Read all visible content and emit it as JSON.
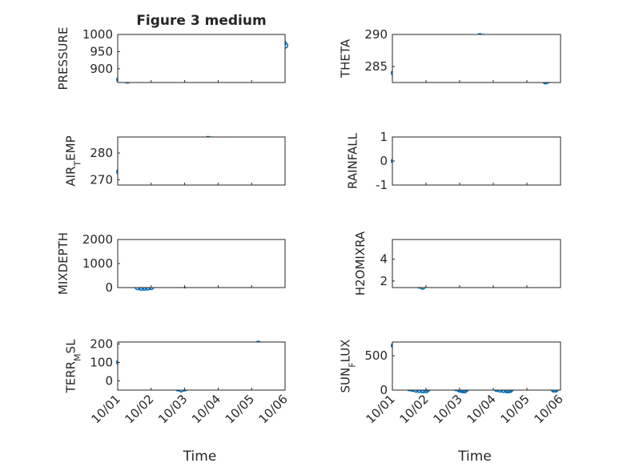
{
  "figure": {
    "title": "Figure 3 medium",
    "xlabel": "Time",
    "marker_color": "#0072bd",
    "xticks": [
      "10/01",
      "10/02",
      "10/03",
      "10/04",
      "10/05",
      "10/06"
    ]
  },
  "chart_data": [
    {
      "type": "scatter",
      "title": "Figure 3 medium",
      "ylabel": "PRESSURE",
      "xlabel": "",
      "xlim": [
        0,
        5
      ],
      "ylim": [
        860,
        1000
      ],
      "yticks": [
        900,
        950,
        1000
      ],
      "ytick_labels": [
        "900",
        "950",
        "1000"
      ],
      "grid": true,
      "series": [
        {
          "name": "PRESSURE",
          "x_days": [
            0.05,
            0.12,
            0.2,
            0.25,
            0.3,
            0.35,
            0.4,
            0.5,
            0.6,
            0.7,
            0.8,
            0.9,
            1.0,
            1.1,
            1.2,
            1.3,
            1.4,
            1.5,
            1.6,
            1.7,
            1.8,
            1.9,
            2.0,
            2.1,
            2.2,
            2.3,
            2.4,
            2.5,
            2.6,
            2.7,
            2.8,
            2.9,
            3.0,
            3.1,
            3.2,
            3.3,
            3.4,
            3.5,
            3.6,
            3.7,
            3.8,
            3.9,
            4.0,
            4.1,
            4.2,
            4.3,
            4.4,
            4.5,
            4.6,
            4.7,
            4.8,
            4.9,
            4.95,
            5.0
          ],
          "values": [
            868,
            868,
            869,
            867,
            866,
            869,
            878,
            885,
            888,
            889,
            889,
            890,
            900,
            908,
            912,
            918,
            935,
            942,
            943,
            945,
            950,
            955,
            952,
            947,
            950,
            955,
            952,
            945,
            944,
            946,
            947,
            944,
            945,
            946,
            947,
            945,
            947,
            952,
            955,
            950,
            948,
            950,
            953,
            948,
            952,
            955,
            953,
            950,
            960,
            965,
            972,
            958,
            975,
            968
          ]
        }
      ]
    },
    {
      "type": "scatter",
      "ylabel": "THETA",
      "xlabel": "",
      "xlim": [
        0,
        5
      ],
      "ylim": [
        282.5,
        290
      ],
      "yticks": [
        285,
        290
      ],
      "ytick_labels": [
        "285",
        "290"
      ],
      "grid": true,
      "series": [
        {
          "name": "THETA",
          "x_days": [
            0.05,
            0.1,
            0.15,
            0.2,
            0.3,
            0.4,
            0.5,
            0.6,
            0.7,
            0.8,
            0.9,
            1.0,
            1.1,
            1.2,
            1.3,
            1.4,
            1.5,
            1.6,
            1.7,
            1.8,
            1.9,
            2.0,
            2.1,
            2.2,
            2.3,
            2.4,
            2.5,
            2.6,
            2.7,
            2.8,
            2.9,
            3.0,
            3.1,
            3.2,
            3.3,
            3.4,
            3.5,
            3.6,
            3.7,
            3.8,
            3.9,
            4.0,
            4.1,
            4.2,
            4.3,
            4.4,
            4.5,
            4.55,
            4.6,
            4.65,
            4.7,
            4.8,
            4.85
          ],
          "values": [
            284,
            284.5,
            285,
            285.3,
            285.6,
            285.8,
            286,
            286,
            286.1,
            286.3,
            286,
            285.9,
            286.4,
            287,
            287.8,
            288.2,
            288.1,
            287.9,
            287.8,
            287,
            285.7,
            285.5,
            285.5,
            285.7,
            287,
            288,
            289.4,
            289.7,
            289.6,
            289.3,
            289.1,
            288.8,
            288.4,
            288,
            287.8,
            287.5,
            286.3,
            287.8,
            288.4,
            288.3,
            287.9,
            287.3,
            286.7,
            285.9,
            285.2,
            284.3,
            283,
            282.7,
            282.8,
            282.9,
            283,
            283.2,
            283.4
          ]
        }
      ]
    },
    {
      "type": "scatter",
      "ylabel": "AIR_TEMP",
      "xlabel": "",
      "xlim": [
        0,
        5
      ],
      "ylim": [
        268,
        286
      ],
      "yticks": [
        270,
        280
      ],
      "ytick_labels": [
        "270",
        "280"
      ],
      "grid": true,
      "series": [
        {
          "name": "AIR_TEMP",
          "x_days": [
            0.05,
            0.1,
            0.2,
            0.3,
            0.4,
            0.5,
            0.6,
            0.7,
            0.8,
            0.9,
            1.0,
            1.1,
            1.2,
            1.3,
            1.4,
            1.5,
            1.6,
            1.7,
            1.8,
            1.9,
            2.0,
            2.1,
            2.2,
            2.3,
            2.4,
            2.5,
            2.6,
            2.7,
            2.8,
            2.9,
            3.0,
            3.1,
            3.2,
            3.3,
            3.4,
            3.5,
            3.6,
            3.7,
            3.8,
            3.9,
            4.0,
            4.1,
            4.2,
            4.3,
            4.4,
            4.5,
            4.6,
            4.7,
            4.8,
            4.85
          ],
          "values": [
            273,
            273.5,
            274,
            274.8,
            275.5,
            276.3,
            276.5,
            276.4,
            276.6,
            276.8,
            277,
            277.3,
            278.3,
            279.5,
            281,
            282.5,
            283.2,
            283.4,
            283.2,
            283,
            283.5,
            283,
            282,
            281.2,
            281.5,
            283,
            284,
            285.2,
            285,
            284.7,
            284.3,
            283.8,
            283.5,
            283,
            282.5,
            282.6,
            283,
            283.7,
            284.2,
            284,
            283.4,
            282.8,
            282.3,
            281.5,
            281,
            280.5,
            279.5,
            280,
            280.6,
            281
          ]
        }
      ]
    },
    {
      "type": "scatter",
      "ylabel": "RAINFALL",
      "xlabel": "",
      "xlim": [
        0,
        5
      ],
      "ylim": [
        -1,
        1
      ],
      "yticks": [
        -1,
        0,
        1
      ],
      "ytick_labels": [
        "-1",
        "0",
        "1"
      ],
      "grid": true,
      "series": [
        {
          "name": "RAINFALL",
          "x_start": 0.05,
          "x_end": 4.85,
          "count": 75,
          "value": 0
        }
      ]
    },
    {
      "type": "scatter",
      "ylabel": "MIXDEPTH",
      "xlabel": "",
      "xlim": [
        0,
        5
      ],
      "ylim": [
        0,
        2000
      ],
      "yticks": [
        0,
        1000,
        2000
      ],
      "ytick_labels": [
        "0",
        "1000",
        "2000"
      ],
      "grid": true,
      "series": [
        {
          "name": "MIXDEPTH",
          "x_days": [
            0.1,
            0.15,
            0.2,
            0.25,
            0.3,
            0.4,
            0.5,
            0.6,
            0.7,
            0.8,
            0.9,
            1.0,
            1.05,
            1.1,
            1.15,
            1.2,
            1.25,
            1.3,
            1.35,
            1.4,
            1.45,
            1.5,
            1.6,
            1.7,
            1.8,
            1.9,
            2.0,
            2.05,
            2.1,
            2.15,
            2.2,
            2.3,
            2.35,
            2.4,
            2.45,
            2.5,
            2.55,
            2.6,
            2.7,
            2.8,
            2.9,
            3.0,
            3.1,
            3.2,
            3.3,
            3.4,
            3.5,
            3.6,
            3.65,
            3.7,
            3.8,
            3.9,
            4.0,
            4.1,
            4.2,
            4.3,
            4.4,
            4.5,
            4.6,
            4.7,
            4.75,
            4.8,
            4.85
          ],
          "values": [
            1500,
            1500,
            1450,
            900,
            820,
            600,
            150,
            20,
            0,
            5,
            10,
            30,
            300,
            500,
            700,
            900,
            1100,
            1300,
            1400,
            1500,
            1600,
            1700,
            200,
            700,
            800,
            850,
            100,
            250,
            500,
            700,
            900,
            250,
            300,
            600,
            750,
            1000,
            1150,
            1200,
            400,
            250,
            250,
            300,
            300,
            250,
            200,
            250,
            700,
            900,
            1000,
            300,
            200,
            150,
            250,
            300,
            350,
            400,
            450,
            500,
            550,
            650,
            750,
            850,
            900
          ]
        }
      ]
    },
    {
      "type": "scatter",
      "ylabel": "H2OMIXRA",
      "xlabel": "",
      "xlim": [
        0,
        5
      ],
      "ylim": [
        1.4,
        5.8
      ],
      "yticks": [
        2,
        4
      ],
      "ytick_labels": [
        "2",
        "4"
      ],
      "grid": true,
      "series": [
        {
          "name": "H2OMIXRA",
          "x_days": [
            0.1,
            0.2,
            0.3,
            0.4,
            0.5,
            0.6,
            0.7,
            0.8,
            0.9,
            1.0,
            1.1,
            1.2,
            1.3,
            1.4,
            1.5,
            1.6,
            1.7,
            1.8,
            1.9,
            2.0,
            2.1,
            2.2,
            2.3,
            2.4,
            2.5,
            2.6,
            2.7,
            2.8,
            2.9,
            3.0,
            3.1,
            3.2,
            3.3,
            3.4,
            3.5,
            3.6,
            3.7,
            3.8,
            3.9,
            4.0,
            4.1,
            4.2,
            4.3,
            4.4,
            4.5,
            4.6,
            4.7,
            4.75,
            4.8,
            4.85
          ],
          "values": [
            2.2,
            2.2,
            2.1,
            2.1,
            1.9,
            1.8,
            1.7,
            1.6,
            1.5,
            1.7,
            1.9,
            2.3,
            2.4,
            2.3,
            2.3,
            2.4,
            2.4,
            2.5,
            3.6,
            3.3,
            3.2,
            3.1,
            3.0,
            2.8,
            2.7,
            2.6,
            2.6,
            2.6,
            2.6,
            2.6,
            2.6,
            2.6,
            2.6,
            2.6,
            2.6,
            2.6,
            3.0,
            3.1,
            3.2,
            3.3,
            3.4,
            3.5,
            3.6,
            3.7,
            3.9,
            4.0,
            4.4,
            4.8,
            5.2,
            5.5
          ]
        }
      ]
    },
    {
      "type": "scatter",
      "ylabel": "TERR_MSL",
      "xlabel": "",
      "xlim": [
        0,
        5
      ],
      "ylim": [
        -50,
        210
      ],
      "yticks": [
        0,
        100,
        200
      ],
      "ytick_labels": [
        "0",
        "100",
        "200"
      ],
      "grid": true,
      "series": [
        {
          "name": "TERR_MSL",
          "x_days": [
            0.05,
            0.1,
            0.15,
            0.2,
            0.3,
            0.35,
            0.4,
            0.45,
            0.5,
            0.6,
            0.7,
            0.8,
            0.9,
            1.0,
            1.1,
            1.15,
            1.2,
            1.3,
            1.4,
            1.45,
            1.5,
            1.6,
            1.7,
            1.8,
            1.9,
            2.0,
            2.1,
            2.2,
            2.3,
            2.4,
            2.5,
            2.6,
            2.7,
            2.8,
            2.9,
            3.0,
            3.1,
            3.2,
            3.3,
            3.4,
            3.5,
            3.6,
            3.7,
            3.8,
            3.9,
            4.0,
            4.1,
            4.2,
            4.25,
            4.3,
            4.35,
            4.4,
            4.45,
            4.5,
            4.55,
            4.6,
            4.65,
            4.7,
            4.75,
            4.8
          ],
          "values": [
            100,
            110,
            120,
            100,
            85,
            60,
            40,
            30,
            50,
            180,
            190,
            170,
            160,
            140,
            120,
            110,
            130,
            140,
            120,
            80,
            10,
            0,
            -20,
            -40,
            -45,
            -40,
            -10,
            0,
            5,
            10,
            120,
            110,
            80,
            100,
            110,
            130,
            160,
            170,
            165,
            160,
            150,
            140,
            150,
            130,
            150,
            180,
            190,
            200,
            180,
            150,
            130,
            100,
            80,
            60,
            40,
            20,
            10,
            0,
            -10,
            0
          ]
        }
      ]
    },
    {
      "type": "scatter",
      "ylabel": "SUN_FLUX",
      "xlabel": "",
      "xlim": [
        0,
        5
      ],
      "ylim": [
        0,
        700
      ],
      "yticks": [
        0,
        500
      ],
      "ytick_labels": [
        "0",
        "500"
      ],
      "grid": true,
      "series": [
        {
          "name": "SUN_FLUX",
          "x_days": [
            0.05,
            0.1,
            0.15,
            0.2,
            0.25,
            0.3,
            0.4,
            0.5,
            0.6,
            0.7,
            0.8,
            0.9,
            1.0,
            1.05,
            1.1,
            1.15,
            1.2,
            1.25,
            1.3,
            1.4,
            1.5,
            1.6,
            1.7,
            1.8,
            1.9,
            2.0,
            2.05,
            2.1,
            2.15,
            2.2,
            2.25,
            2.3,
            2.4,
            2.5,
            2.6,
            2.7,
            2.8,
            2.9,
            3.0,
            3.1,
            3.2,
            3.3,
            3.4,
            3.45,
            3.5,
            3.55,
            3.6,
            3.7,
            3.8,
            3.9,
            4.0,
            4.1,
            4.2,
            4.3,
            4.4,
            4.5,
            4.6,
            4.7,
            4.8,
            4.85
          ],
          "values": [
            650,
            620,
            560,
            500,
            360,
            200,
            60,
            30,
            20,
            10,
            5,
            0,
            0,
            20,
            80,
            200,
            300,
            400,
            520,
            650,
            600,
            500,
            400,
            80,
            30,
            10,
            5,
            0,
            0,
            20,
            100,
            250,
            400,
            580,
            560,
            500,
            380,
            200,
            60,
            20,
            10,
            5,
            0,
            0,
            5,
            30,
            60,
            80,
            150,
            200,
            250,
            320,
            380,
            350,
            300,
            200,
            100,
            40,
            10,
            10
          ]
        }
      ]
    }
  ]
}
